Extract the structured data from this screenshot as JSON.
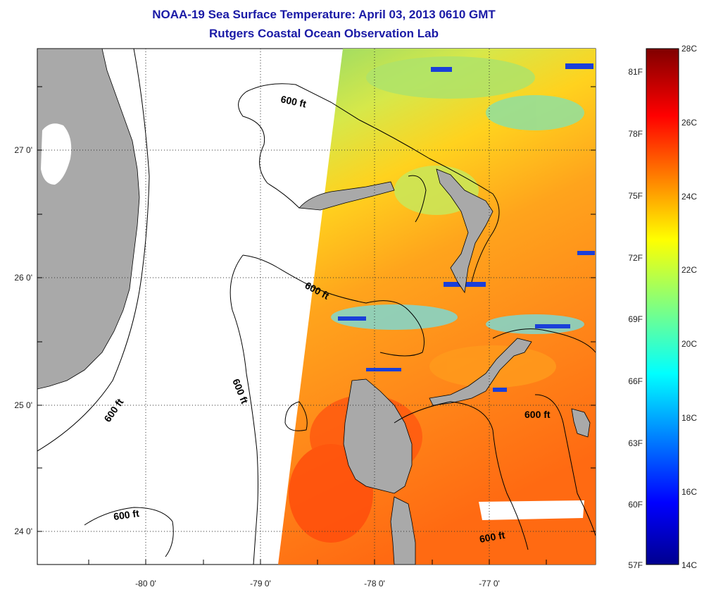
{
  "title": "NOAA-19 Sea Surface Temperature:  April 03, 2013 0610 GMT",
  "subtitle": "Rutgers Coastal Ocean Observation Lab",
  "lon_labels": [
    "-80 0'",
    "-79 0'",
    "-78 0'",
    "-77 0'"
  ],
  "lat_labels": [
    "27 0'",
    "26 0'",
    "25 0'",
    "24 0'"
  ],
  "contour_label": "600 ft",
  "colorbar": {
    "celsius_labels": [
      "28C",
      "26C",
      "24C",
      "22C",
      "20C",
      "18C",
      "16C",
      "14C"
    ],
    "fahrenheit_labels": [
      "81F",
      "78F",
      "75F",
      "72F",
      "69F",
      "66F",
      "63F",
      "60F",
      "57F"
    ],
    "range_c": [
      14,
      28
    ]
  },
  "colors": {
    "title": "#1a1aa6",
    "land": "#a9a9a9",
    "no_data": "#ffffff"
  }
}
